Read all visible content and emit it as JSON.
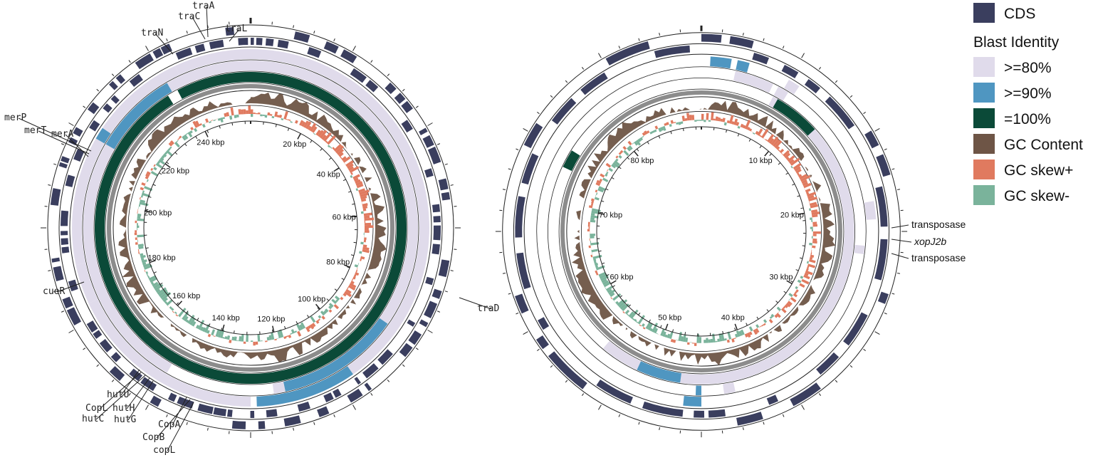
{
  "legend": {
    "cds": {
      "label": "CDS",
      "color": "#3a3e5e"
    },
    "heading": "Blast Identity",
    "items": [
      {
        "label": ">=80%",
        "color": "#e0dbeb"
      },
      {
        "label": ">=90%",
        "color": "#4f96c1"
      },
      {
        "label": "=100%",
        "color": "#0b4a38"
      },
      {
        "label": "GC Content",
        "color": "#6e5546"
      },
      {
        "label": "GC skew+",
        "color": "#e07a5f"
      },
      {
        "label": "GC skew-",
        "color": "#7ab39b"
      }
    ]
  },
  "maps": [
    {
      "scale_labels": [
        "20 kbp",
        "40 kbp",
        "60 kbp",
        "80 kbp",
        "100 kbp",
        "120 kbp",
        "140 kbp",
        "160 kbp",
        "180 kbp",
        "200 kbp",
        "220 kbp",
        "240 kbp"
      ],
      "gene_labels": [
        "traA",
        "traC",
        "traL",
        "traN",
        "merP",
        "merT",
        "merA",
        "cueR",
        "traD",
        "hutU",
        "CopL",
        "hutH",
        "hutC",
        "hutG",
        "CopA",
        "CopB",
        "copL"
      ]
    },
    {
      "scale_labels": [
        "10 kbp",
        "20 kbp",
        "30 kbp",
        "40 kbp",
        "50 kbp",
        "60 kbp",
        "70 kbp",
        "80 kbp"
      ],
      "gene_labels": [
        "transposase",
        "xopJ2b",
        "transposase"
      ]
    }
  ]
}
